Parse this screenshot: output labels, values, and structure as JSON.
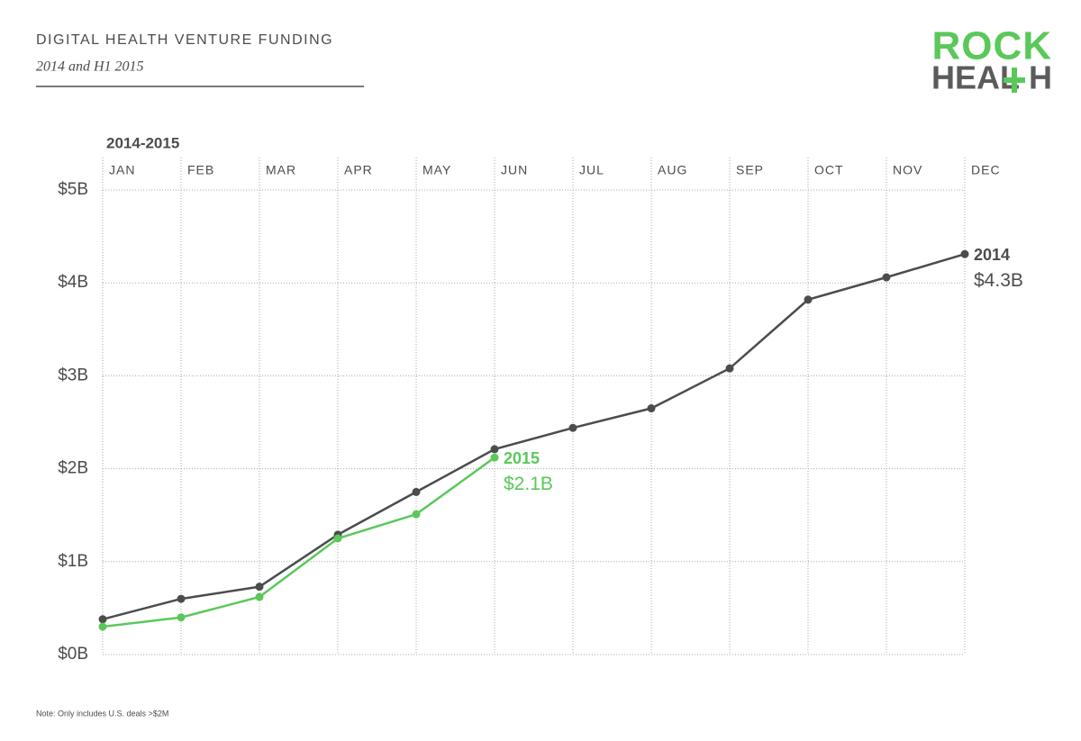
{
  "chart_data": {
    "type": "line",
    "title": "DIGITAL HEALTH VENTURE FUNDING",
    "subtitle": "2014 and H1 2015",
    "x_label": "2014-2015",
    "note": "Note: Only includes U.S. deals >$2M",
    "logo": [
      "ROCK",
      "HEAL",
      "H"
    ],
    "categories": [
      "JAN",
      "FEB",
      "MAR",
      "APR",
      "MAY",
      "JUN",
      "JUL",
      "AUG",
      "SEP",
      "OCT",
      "NOV",
      "DEC"
    ],
    "series": [
      {
        "name": "2014",
        "color": "#4a4d4c",
        "values": [
          0.38,
          0.6,
          0.73,
          1.29,
          1.75,
          2.21,
          2.44,
          2.65,
          3.08,
          3.82,
          4.06,
          4.31
        ],
        "value_labels": [
          null,
          null,
          null,
          null,
          null,
          null,
          null,
          null,
          null,
          null,
          null,
          "$4.3B"
        ]
      },
      {
        "name": "2015",
        "color": "#5ac85a",
        "values": [
          0.3,
          0.4,
          0.62,
          1.25,
          1.51,
          2.12,
          null,
          null,
          null,
          null,
          null,
          null
        ],
        "value_labels": [
          null,
          null,
          null,
          null,
          null,
          "$2.1B",
          null,
          null,
          null,
          null,
          null,
          null
        ]
      }
    ],
    "ylim": [
      0,
      5
    ],
    "yticks": [
      {
        "value": 0,
        "label": "$0B"
      },
      {
        "value": 1,
        "label": "$1B"
      },
      {
        "value": 2,
        "label": "$2B"
      },
      {
        "value": 3,
        "label": "$3B"
      },
      {
        "value": 4,
        "label": "$4B"
      },
      {
        "value": 5,
        "label": "$5B"
      }
    ],
    "grid": true
  }
}
